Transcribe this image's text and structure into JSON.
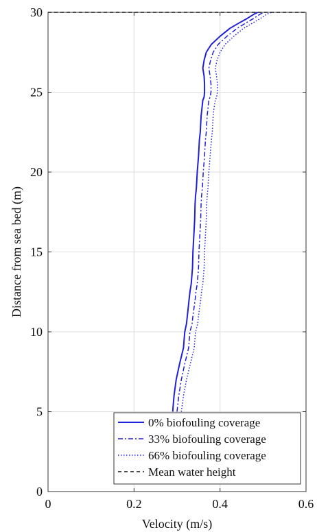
{
  "chart_data": {
    "type": "line",
    "xlabel": "Velocity (m/s)",
    "ylabel": "Distance from sea bed (m)",
    "xlim": [
      0,
      0.6
    ],
    "ylim": [
      0,
      30
    ],
    "xticks": [
      0,
      0.2,
      0.4,
      0.6
    ],
    "yticks": [
      0,
      5,
      10,
      15,
      20,
      25,
      30
    ],
    "xtick_labels": [
      "0",
      "0.2",
      "0.4",
      "0.6"
    ],
    "ytick_labels": [
      "0",
      "5",
      "10",
      "15",
      "20",
      "25",
      "30"
    ],
    "grid": true,
    "legend_position": "bottom-right",
    "series": [
      {
        "name": "0% biofouling coverage",
        "color": "#1f1fd6",
        "style": "solid",
        "x": [
          0.29,
          0.293,
          0.298,
          0.306,
          0.315,
          0.318,
          0.322,
          0.324,
          0.328,
          0.33,
          0.333,
          0.336,
          0.337,
          0.339,
          0.341,
          0.342,
          0.343,
          0.345,
          0.347,
          0.35,
          0.352,
          0.354,
          0.355,
          0.356,
          0.358,
          0.36,
          0.363,
          0.364,
          0.364,
          0.363,
          0.36,
          0.363,
          0.368,
          0.38,
          0.4,
          0.423,
          0.442,
          0.462,
          0.48,
          0.488
        ],
        "y": [
          5,
          6,
          7,
          8,
          9,
          10,
          10.5,
          11,
          12,
          12.5,
          13,
          14,
          15,
          16,
          17,
          18,
          18.5,
          19,
          20,
          21,
          22,
          22.5,
          23,
          23.5,
          24,
          24.5,
          24.7,
          25,
          25.5,
          26,
          26.5,
          27,
          27.5,
          28,
          28.5,
          29,
          29.3,
          29.6,
          29.9,
          30
        ]
      },
      {
        "name": "33% biofouling coverage",
        "color": "#1f1fd6",
        "style": "dashdot",
        "x": [
          0.3,
          0.304,
          0.31,
          0.318,
          0.327,
          0.33,
          0.335,
          0.337,
          0.342,
          0.344,
          0.347,
          0.35,
          0.351,
          0.353,
          0.355,
          0.356,
          0.357,
          0.359,
          0.361,
          0.364,
          0.366,
          0.368,
          0.369,
          0.37,
          0.372,
          0.374,
          0.377,
          0.379,
          0.379,
          0.377,
          0.374,
          0.378,
          0.384,
          0.396,
          0.416,
          0.44,
          0.458,
          0.477,
          0.494,
          0.502
        ],
        "y": [
          5,
          6,
          7,
          8,
          9,
          10,
          10.5,
          11,
          12,
          12.5,
          13,
          14,
          15,
          16,
          17,
          18,
          18.5,
          19,
          20,
          21,
          22,
          22.5,
          23,
          23.5,
          24,
          24.5,
          24.7,
          25,
          25.5,
          26,
          26.5,
          27,
          27.5,
          28,
          28.5,
          29,
          29.3,
          29.6,
          29.9,
          30
        ]
      },
      {
        "name": "66% biofouling coverage",
        "color": "#1f1fd6",
        "style": "dotted",
        "x": [
          0.31,
          0.315,
          0.322,
          0.331,
          0.34,
          0.343,
          0.348,
          0.35,
          0.355,
          0.357,
          0.36,
          0.363,
          0.364,
          0.366,
          0.368,
          0.369,
          0.37,
          0.372,
          0.374,
          0.377,
          0.38,
          0.382,
          0.383,
          0.384,
          0.386,
          0.389,
          0.392,
          0.394,
          0.394,
          0.392,
          0.389,
          0.393,
          0.4,
          0.412,
          0.432,
          0.455,
          0.474,
          0.493,
          0.51,
          0.52
        ],
        "y": [
          5,
          6,
          7,
          8,
          9,
          10,
          10.5,
          11,
          12,
          12.5,
          13,
          14,
          15,
          16,
          17,
          18,
          18.5,
          19,
          20,
          21,
          22,
          22.5,
          23,
          23.5,
          24,
          24.5,
          24.7,
          25,
          25.5,
          26,
          26.5,
          27,
          27.5,
          28,
          28.5,
          29,
          29.3,
          29.6,
          29.9,
          30
        ]
      },
      {
        "name": "Mean water height",
        "color": "#111111",
        "style": "dashed",
        "x": [
          0,
          0.6
        ],
        "y": [
          30,
          30
        ]
      }
    ]
  }
}
